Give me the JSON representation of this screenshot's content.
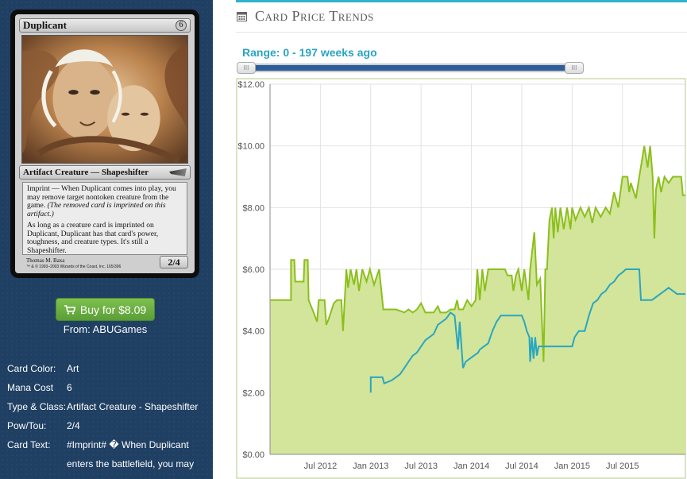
{
  "card": {
    "name": "Duplicant",
    "mana_symbol": "6",
    "type_line": "Artifact Creature — Shapeshifter",
    "rules_text_1a": "Imprint — When Duplicant comes into play, you may remove target nontoken creature from the game. ",
    "rules_text_1b": "(The removed card is imprinted on this artifact.)",
    "rules_text_2": "As long as a creature card is imprinted on Duplicant, Duplicant has that card's power, toughness, and creature types. It's still a Shapeshifter.",
    "power_toughness": "2/4",
    "artist": "Thomas M. Baxa",
    "copyright": "™ & © 1993–2003 Wizards of the Coast, Inc. 165/306"
  },
  "purchase": {
    "button_label": "Buy for $8.09",
    "from_text": "From: ABUGames"
  },
  "details": [
    {
      "label": "Card Color:",
      "value": "Art"
    },
    {
      "label": "Mana Cost",
      "value": "6"
    },
    {
      "label": "Type & Class:",
      "value": "Artifact Creature - Shapeshifter"
    },
    {
      "label": "Pow/Tou:",
      "value": "2/4"
    },
    {
      "label": "Card Text:",
      "value": "#Imprint# � When Duplicant enters the battlefield, you may"
    }
  ],
  "panel": {
    "title": "Card Price Trends",
    "range_label": "Range: 0 - 197 weeks ago",
    "handle_glyph": "III"
  },
  "colors": {
    "sidebar_bg": "#1f3f63",
    "accent_teal": "#2fb3c9",
    "buy_green": "#6bb043",
    "series_green": "#8cbf1c",
    "area_green": "#d2e59a",
    "series_blue": "#2aa6c0"
  },
  "chart_data": {
    "type": "line",
    "y_tick_labels": [
      "$0.00",
      "$2.00",
      "$4.00",
      "$6.00",
      "$8.00",
      "$10.00",
      "$12.00"
    ],
    "x_tick_labels": [
      "Jul 2012",
      "Jan 2013",
      "Jul 2013",
      "Jan 2014",
      "Jul 2014",
      "Jan 2015",
      "Jul 2015"
    ],
    "ylim": [
      0,
      12
    ],
    "x_unit": "months since Jan 2012",
    "grid": true,
    "series": [
      {
        "points": [
          [
            0,
            5.0
          ],
          [
            2.5,
            5.0
          ],
          [
            2.5,
            6.3
          ],
          [
            2.9,
            6.3
          ],
          [
            3.0,
            5.6
          ],
          [
            4.0,
            5.6
          ],
          [
            4.1,
            6.3
          ],
          [
            4.5,
            6.3
          ],
          [
            4.6,
            5.0
          ],
          [
            5.2,
            4.6
          ],
          [
            5.6,
            4.3
          ],
          [
            5.8,
            5.0
          ],
          [
            6.5,
            5.0
          ],
          [
            6.7,
            4.2
          ],
          [
            7.0,
            4.4
          ],
          [
            7.6,
            4.9
          ],
          [
            8.0,
            5.0
          ],
          [
            8.5,
            5.0
          ],
          [
            8.7,
            4.0
          ],
          [
            8.9,
            5.0
          ],
          [
            9.1,
            6.0
          ],
          [
            9.3,
            5.4
          ],
          [
            9.6,
            6.0
          ],
          [
            10.0,
            5.5
          ],
          [
            10.3,
            6.0
          ],
          [
            10.6,
            5.3
          ],
          [
            11.0,
            6.0
          ],
          [
            11.5,
            5.6
          ],
          [
            11.9,
            6.0
          ],
          [
            12.4,
            5.5
          ],
          [
            13.0,
            6.0
          ],
          [
            13.5,
            4.7
          ],
          [
            15.0,
            4.7
          ],
          [
            16.0,
            4.6
          ],
          [
            16.5,
            4.7
          ],
          [
            17.0,
            4.6
          ],
          [
            17.5,
            4.7
          ],
          [
            18.0,
            4.9
          ],
          [
            18.5,
            4.6
          ],
          [
            19.5,
            4.6
          ],
          [
            20.0,
            4.8
          ],
          [
            20.3,
            4.6
          ],
          [
            21.0,
            4.6
          ],
          [
            21.5,
            4.7
          ],
          [
            22.0,
            4.7
          ],
          [
            22.3,
            5.0
          ],
          [
            22.5,
            4.7
          ],
          [
            23.0,
            4.7
          ],
          [
            23.5,
            5.0
          ],
          [
            24.0,
            4.8
          ],
          [
            24.5,
            5.0
          ],
          [
            24.7,
            6.0
          ],
          [
            25.0,
            5.0
          ],
          [
            25.3,
            6.0
          ],
          [
            25.6,
            5.3
          ],
          [
            26.0,
            6.0
          ],
          [
            28.0,
            6.0
          ],
          [
            28.3,
            5.8
          ],
          [
            28.8,
            5.8
          ],
          [
            29.0,
            5.3
          ],
          [
            29.3,
            5.8
          ],
          [
            29.6,
            6.0
          ],
          [
            30.0,
            5.3
          ],
          [
            30.3,
            6.0
          ],
          [
            30.8,
            5.0
          ],
          [
            31.0,
            6.0
          ],
          [
            31.5,
            7.2
          ],
          [
            31.8,
            5.5
          ],
          [
            32.2,
            5.7
          ],
          [
            32.6,
            3.0
          ],
          [
            32.8,
            6.0
          ],
          [
            33.0,
            6.0
          ],
          [
            33.3,
            7.6
          ],
          [
            33.6,
            8.0
          ],
          [
            33.8,
            7.0
          ],
          [
            34.0,
            8.0
          ],
          [
            34.3,
            7.2
          ],
          [
            34.6,
            8.0
          ],
          [
            35.0,
            7.3
          ],
          [
            35.4,
            8.0
          ],
          [
            35.8,
            7.3
          ],
          [
            36.0,
            8.0
          ],
          [
            36.4,
            7.6
          ],
          [
            37.0,
            8.0
          ],
          [
            37.5,
            7.7
          ],
          [
            38.0,
            8.0
          ],
          [
            38.4,
            7.5
          ],
          [
            38.8,
            8.0
          ],
          [
            39.4,
            7.7
          ],
          [
            40.0,
            8.0
          ],
          [
            40.5,
            7.8
          ],
          [
            41.0,
            8.5
          ],
          [
            41.5,
            8.0
          ],
          [
            42.0,
            9.0
          ],
          [
            42.6,
            9.0
          ],
          [
            42.8,
            8.5
          ],
          [
            43.0,
            8.8
          ],
          [
            43.6,
            8.3
          ],
          [
            44.0,
            9.0
          ],
          [
            44.3,
            9.5
          ],
          [
            44.6,
            10.0
          ],
          [
            45.0,
            9.3
          ],
          [
            45.3,
            10.0
          ],
          [
            45.6,
            9.0
          ],
          [
            45.8,
            7.0
          ],
          [
            46.0,
            8.6
          ],
          [
            46.3,
            9.0
          ],
          [
            46.6,
            8.5
          ],
          [
            47.0,
            9.0
          ],
          [
            47.5,
            8.8
          ],
          [
            48.0,
            9.0
          ],
          [
            49.0,
            9.0
          ],
          [
            49.2,
            8.4
          ],
          [
            49.5,
            8.4
          ]
        ]
      },
      {
        "points": [
          [
            12.0,
            2.0
          ],
          [
            12.0,
            2.5
          ],
          [
            13.4,
            2.5
          ],
          [
            13.6,
            2.3
          ],
          [
            14.5,
            2.4
          ],
          [
            15.0,
            2.5
          ],
          [
            15.5,
            2.6
          ],
          [
            16.0,
            2.8
          ],
          [
            16.5,
            3.0
          ],
          [
            17.0,
            3.2
          ],
          [
            17.5,
            3.3
          ],
          [
            18.0,
            3.5
          ],
          [
            18.5,
            3.7
          ],
          [
            19.0,
            3.8
          ],
          [
            19.5,
            3.9
          ],
          [
            20.0,
            4.2
          ],
          [
            20.5,
            4.3
          ],
          [
            21.0,
            4.4
          ],
          [
            21.5,
            4.6
          ],
          [
            22.0,
            4.5
          ],
          [
            22.4,
            3.4
          ],
          [
            22.6,
            4.3
          ],
          [
            23.0,
            2.8
          ],
          [
            23.3,
            3.0
          ],
          [
            23.8,
            3.1
          ],
          [
            24.3,
            3.2
          ],
          [
            24.8,
            3.3
          ],
          [
            25.0,
            3.4
          ],
          [
            25.5,
            3.5
          ],
          [
            26.0,
            3.6
          ],
          [
            26.5,
            4.0
          ],
          [
            27.0,
            4.3
          ],
          [
            27.5,
            4.5
          ],
          [
            30.0,
            4.5
          ],
          [
            30.3,
            4.3
          ],
          [
            30.6,
            4.0
          ],
          [
            30.9,
            3.8
          ],
          [
            31.0,
            3.0
          ],
          [
            31.2,
            3.8
          ],
          [
            31.4,
            3.1
          ],
          [
            31.6,
            3.8
          ],
          [
            31.8,
            3.2
          ],
          [
            32.0,
            3.5
          ],
          [
            34.0,
            3.5
          ],
          [
            36.0,
            3.5
          ],
          [
            36.3,
            3.8
          ],
          [
            36.8,
            4.0
          ],
          [
            37.5,
            4.0
          ],
          [
            38.0,
            4.5
          ],
          [
            38.5,
            4.9
          ],
          [
            39.0,
            5.0
          ],
          [
            39.5,
            5.2
          ],
          [
            40.0,
            5.3
          ],
          [
            40.5,
            5.5
          ],
          [
            41.0,
            5.6
          ],
          [
            41.5,
            5.8
          ],
          [
            42.0,
            5.9
          ],
          [
            42.4,
            6.0
          ],
          [
            44.0,
            6.0
          ],
          [
            44.2,
            5.0
          ],
          [
            45.0,
            5.0
          ],
          [
            45.5,
            5.0
          ],
          [
            46.0,
            5.1
          ],
          [
            46.5,
            5.2
          ],
          [
            47.0,
            5.3
          ],
          [
            47.5,
            5.4
          ],
          [
            48.0,
            5.3
          ],
          [
            48.5,
            5.2
          ],
          [
            49.5,
            5.2
          ]
        ]
      }
    ]
  }
}
